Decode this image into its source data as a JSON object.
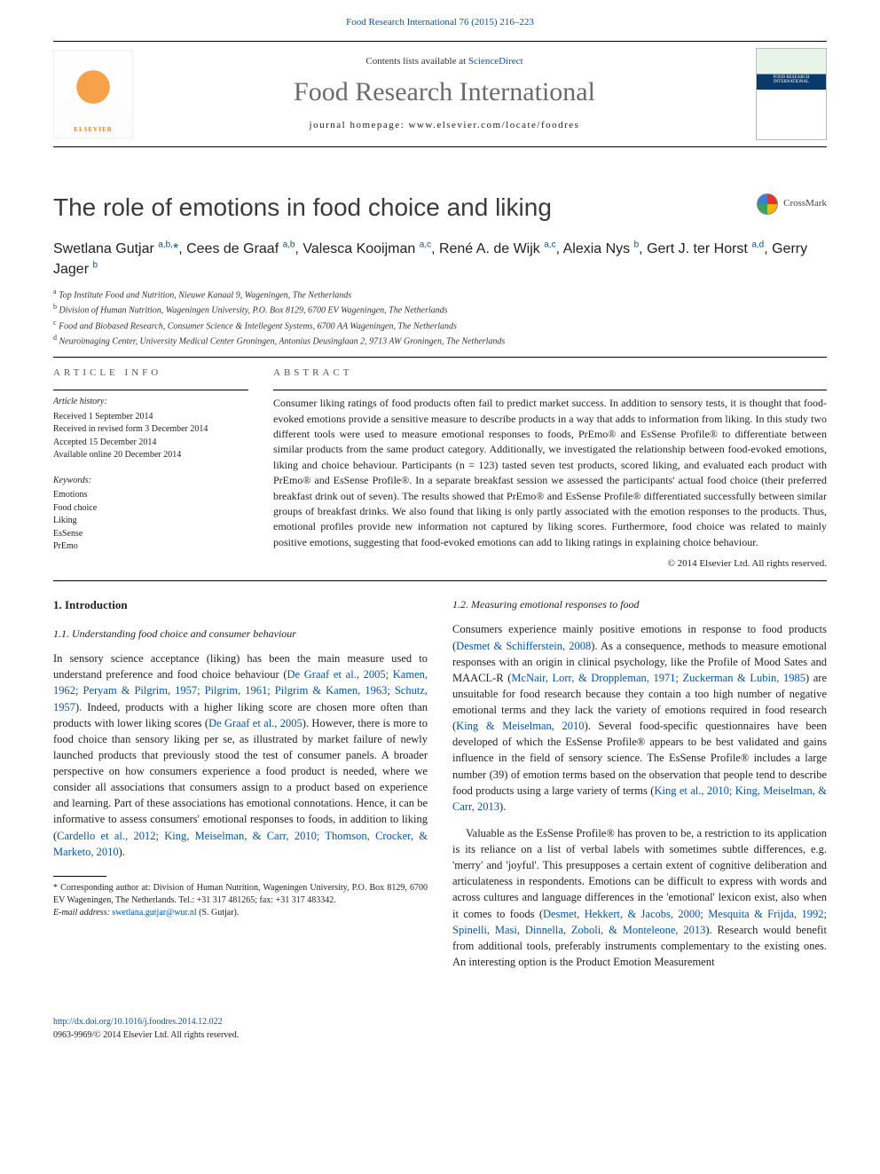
{
  "header": {
    "journal_ref": "Food Research International 76 (2015) 216–223",
    "contents_prefix": "Contents lists available at ",
    "contents_link": "ScienceDirect",
    "journal_title": "Food Research International",
    "homepage_prefix": "journal homepage: ",
    "homepage_url": "www.elsevier.com/locate/foodres",
    "publisher_name": "ELSEVIER",
    "cover_label": "FOOD RESEARCH INTERNATIONAL"
  },
  "crossmark": {
    "label": "CrossMark"
  },
  "article": {
    "title": "The role of emotions in food choice and liking",
    "authors_html": "Swetlana Gutjar <sup>a,b,</sup><span class='corr'>*</span>, Cees de Graaf <sup>a,b</sup>, Valesca Kooijman <sup>a,c</sup>, René A. de Wijk <sup>a,c</sup>, Alexia Nys <sup>b</sup>, Gert J. ter Horst <sup>a,d</sup>, Gerry Jager <sup>b</sup>",
    "affiliations": [
      "Top Institute Food and Nutrition, Nieuwe Kanaal 9, Wageningen, The Netherlands",
      "Division of Human Nutrition, Wageningen University, P.O. Box 8129, 6700 EV Wageningen, The Netherlands",
      "Food and Biobased Research, Consumer Science & Intellegent Systems, 6700 AA Wageningen, The Netherlands",
      "Neuroimaging Center, University Medical Center Groningen, Antonius Deusinglaan 2, 9713 AW Groningen, The Netherlands"
    ],
    "affil_keys": [
      "a",
      "b",
      "c",
      "d"
    ]
  },
  "info": {
    "label": "ARTICLE INFO",
    "history_label": "Article history:",
    "history": [
      "Received 1 September 2014",
      "Received in revised form 3 December 2014",
      "Accepted 15 December 2014",
      "Available online 20 December 2014"
    ],
    "keywords_label": "Keywords:",
    "keywords": [
      "Emotions",
      "Food choice",
      "Liking",
      "EsSense",
      "PrEmo"
    ]
  },
  "abstract": {
    "label": "ABSTRACT",
    "text": "Consumer liking ratings of food products often fail to predict market success. In addition to sensory tests, it is thought that food-evoked emotions provide a sensitive measure to describe products in a way that adds to information from liking. In this study two different tools were used to measure emotional responses to foods, PrEmo® and EsSense Profile® to differentiate between similar products from the same product category. Additionally, we investigated the relationship between food-evoked emotions, liking and choice behaviour. Participants (n = 123) tasted seven test products, scored liking, and evaluated each product with PrEmo® and EsSense Profile®. In a separate breakfast session we assessed the participants' actual food choice (their preferred breakfast drink out of seven). The results showed that PrEmo® and EsSense Profile® differentiated successfully between similar groups of breakfast drinks. We also found that liking is only partly associated with the emotion responses to the products. Thus, emotional profiles provide new information not captured by liking scores. Furthermore, food choice was related to mainly positive emotions, suggesting that food-evoked emotions can add to liking ratings in explaining choice behaviour.",
    "copyright": "© 2014 Elsevier Ltd. All rights reserved."
  },
  "body": {
    "h_intro": "1. Introduction",
    "h_11": "1.1. Understanding food choice and consumer behaviour",
    "p11": "In sensory science acceptance (liking) has been the main measure used to understand preference and food choice behaviour (",
    "c11a": "De Graaf et al., 2005; Kamen, 1962; Peryam & Pilgrim, 1957; Pilgrim, 1961; Pilgrim & Kamen, 1963; Schutz, 1957",
    "p11b": "). Indeed, products with a higher liking score are chosen more often than products with lower liking scores (",
    "c11b": "De Graaf et al., 2005",
    "p11c": "). However, there is more to food choice than sensory liking per se, as illustrated by market failure of newly launched products that previously stood the test of consumer panels. A broader perspective on how consumers experience a food product is needed, where we consider all associations that consumers assign to a product based on experience and learning. Part of these associations has emotional connotations. Hence, it can be informative to assess consumers' emotional responses to foods, in addition to liking (",
    "c11c": "Cardello et al., 2012; King, Meiselman, & Carr, 2010; Thomson, Crocker, & Marketo, 2010",
    "p11d": ").",
    "h_12": "1.2. Measuring emotional responses to food",
    "p12a": "Consumers experience mainly positive emotions in response to food products (",
    "c12a": "Desmet & Schifferstein, 2008",
    "p12a2": "). As a consequence, methods to measure emotional responses with an origin in clinical psychology, like the Profile of Mood Sates and MAACL-R (",
    "c12b": "McNair, Lorr, & Droppleman, 1971; Zuckerman & Lubin, 1985",
    "p12a3": ") are unsuitable for food research because they contain a too high number of negative emotional terms and they lack the variety of emotions required in food research (",
    "c12c": "King & Meiselman, 2010",
    "p12a4": "). Several food-specific questionnaires have been developed of which the EsSense Profile® appears to be best validated and gains influence in the field of sensory science. The EsSense Profile® includes a large number (39) of emotion terms based on the observation that people tend to describe food products using a large variety of terms (",
    "c12d": "King et al., 2010; King, Meiselman, & Carr, 2013",
    "p12a5": ").",
    "p12b": "Valuable as the EsSense Profile® has proven to be, a restriction to its application is its reliance on a list of verbal labels with sometimes subtle differences, e.g. 'merry' and 'joyful'. This presupposes a certain extent of cognitive deliberation and articulateness in respondents. Emotions can be difficult to express with words and across cultures and language differences in the 'emotional' lexicon exist, also when it comes to foods (",
    "c12e": "Desmet, Hekkert, & Jacobs, 2000; Mesquita & Frijda, 1992; Spinelli, Masi, Dinnella, Zoboli, & Monteleone, 2013",
    "p12b2": "). Research would benefit from additional tools, preferably instruments complementary to the existing ones. An interesting option is the Product Emotion Measurement"
  },
  "footnotes": {
    "corr": "* Corresponding author at: Division of Human Nutrition, Wageningen University, P.O. Box 8129, 6700 EV Wageningen, The Netherlands. Tel.: +31 317 481265; fax: +31 317 483342.",
    "email_label": "E-mail address: ",
    "email": "swetlana.gutjar@wur.nl",
    "email_suffix": " (S. Gutjar)."
  },
  "footer": {
    "doi": "http://dx.doi.org/10.1016/j.foodres.2014.12.022",
    "issn_line": "0963-9969/© 2014 Elsevier Ltd. All rights reserved."
  },
  "colors": {
    "link": "#0056b3",
    "title_gray": "#6b6b6b",
    "elsevier_orange": "#ff7a00"
  }
}
